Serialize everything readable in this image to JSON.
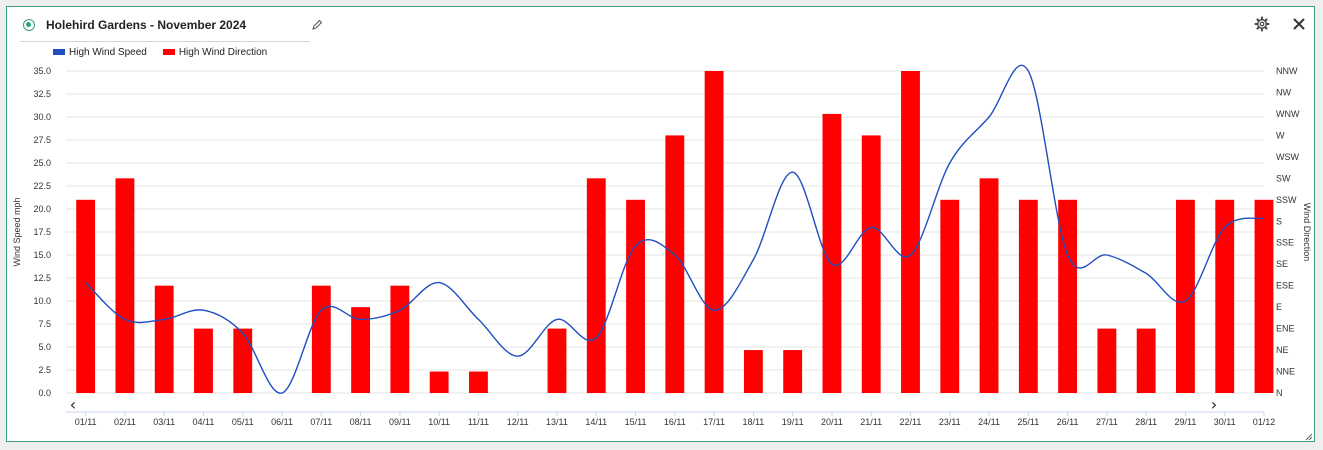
{
  "window": {
    "title": "Holehird Gardens - November 2024",
    "status_color": "#2aa57f",
    "border_color": "#3c9d86",
    "icons": [
      "edit-icon",
      "gear-icon",
      "close-icon",
      "resize-icon"
    ]
  },
  "chart_data": {
    "type": "bar",
    "title": "",
    "categories": [
      "01/11",
      "02/11",
      "03/11",
      "04/11",
      "05/11",
      "06/11",
      "07/11",
      "08/11",
      "09/11",
      "10/11",
      "11/11",
      "12/11",
      "13/11",
      "14/11",
      "15/11",
      "16/11",
      "17/11",
      "18/11",
      "19/11",
      "20/11",
      "21/11",
      "22/11",
      "23/11",
      "24/11",
      "25/11",
      "26/11",
      "27/11",
      "28/11",
      "29/11",
      "30/11",
      "01/12"
    ],
    "legend": {
      "placement": "top-left",
      "entries": [
        "High Wind Speed",
        "High Wind Direction"
      ]
    },
    "grid": true,
    "series": [
      {
        "name": "High Wind Direction",
        "type": "bar",
        "axis": "right",
        "color": "#ff0000",
        "values": [
          "SSW",
          "SW",
          "ESE",
          "ENE",
          "ENE",
          null,
          "ESE",
          "E",
          "ESE",
          "NNE",
          "NNE",
          null,
          "ENE",
          "SW",
          "SSW",
          "W",
          "NNW",
          "NE",
          "NE",
          "WNW",
          "W",
          "NNW",
          "SSW",
          "SW",
          "SSW",
          "SSW",
          "ENE",
          "ENE",
          "SSW",
          "SSW",
          "SSW"
        ]
      },
      {
        "name": "High Wind Speed",
        "type": "line",
        "axis": "left",
        "color": "#1f4fbf",
        "values": [
          12,
          8,
          8,
          9,
          6.5,
          0,
          9,
          8,
          9,
          12,
          8,
          4,
          8,
          6,
          16,
          15,
          9,
          14.5,
          24,
          14,
          18,
          15,
          25,
          30,
          35,
          15,
          15,
          13,
          10,
          18,
          19
        ]
      }
    ],
    "y_left": {
      "label": "Wind Speed mph",
      "ylim": [
        0,
        35
      ],
      "ticks": [
        "0.0",
        "2.5",
        "5.0",
        "7.5",
        "10.0",
        "12.5",
        "15.0",
        "17.5",
        "20.0",
        "22.5",
        "25.0",
        "27.5",
        "30.0",
        "32.5",
        "35.0"
      ]
    },
    "y_right": {
      "label": "Wind Direction",
      "categories": [
        "N",
        "NNE",
        "NE",
        "ENE",
        "E",
        "ESE",
        "SE",
        "SSE",
        "S",
        "SSW",
        "SW",
        "WSW",
        "W",
        "WNW",
        "NW",
        "NNW"
      ]
    },
    "navigation": {
      "prev_symbol": "‹",
      "next_symbol": "›"
    }
  }
}
